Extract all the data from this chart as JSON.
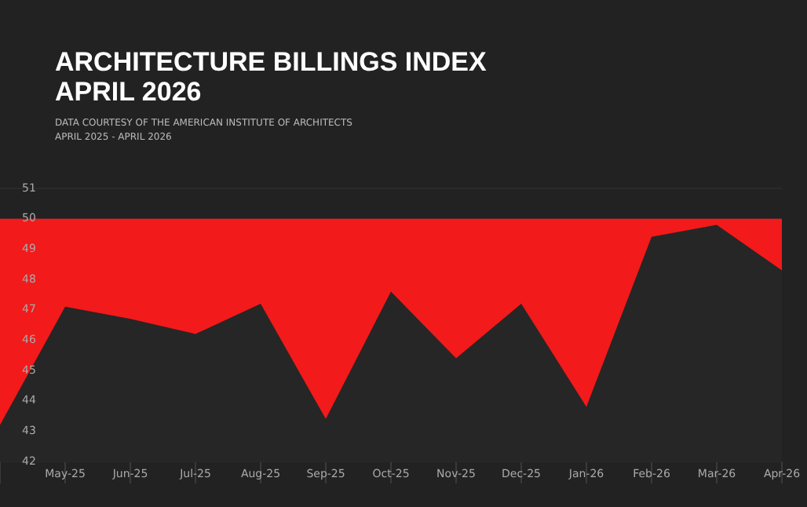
{
  "chart_data": {
    "type": "area",
    "title": "ARCHITECTURE BILLINGS INDEX\nAPRIL 2026",
    "subtitle": "DATA COURTESY OF THE AMERICAN INSTITUTE OF ARCHITECTS",
    "annotations": [
      "APRIL 2025 - APRIL 2026"
    ],
    "categories": [
      null,
      "May-25",
      "Jun-25",
      "Jul-25",
      "Aug-25",
      "Sep-25",
      "Oct-25",
      "Nov-25",
      "Dec-25",
      "Jan-26",
      "Feb-26",
      "Mar-26",
      "Apr-26"
    ],
    "series": [
      {
        "color": "#262626",
        "values": [
          43.2,
          47.1,
          46.7,
          46.2,
          47.2,
          43.4,
          47.6,
          45.4,
          47.2,
          43.8,
          49.4,
          49.8,
          48.3
        ]
      }
    ],
    "bands": [
      {
        "axis": "y",
        "from": 42,
        "to": 50,
        "color": "#f21a1a"
      }
    ],
    "ylim": [
      42,
      51
    ],
    "yticks": [
      42,
      43,
      44,
      45,
      46,
      47,
      48,
      49,
      50,
      51
    ],
    "grid": "y",
    "legend": false
  }
}
